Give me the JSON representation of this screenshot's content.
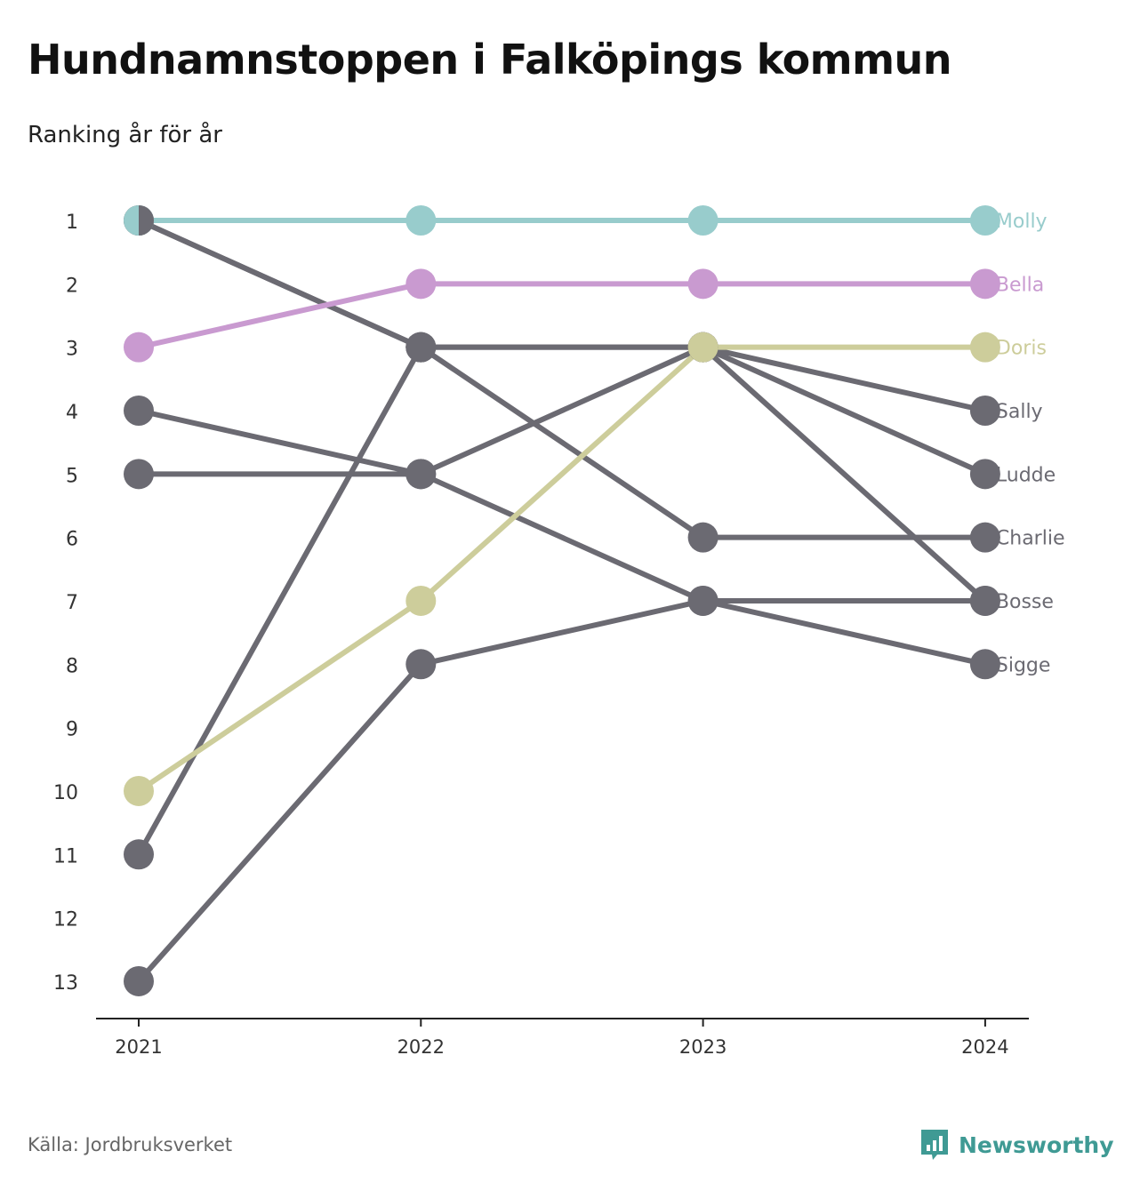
{
  "title": "Hundnamnstoppen i Falköpings kommun",
  "subtitle": "Ranking år för år",
  "source": "Källa: Jordbruksverket",
  "brand": {
    "name": "Newsworthy",
    "icon": "bar-chart-speech-bubble-icon",
    "color": "#3f9a94"
  },
  "chart_data": {
    "type": "line",
    "x": [
      "2021",
      "2022",
      "2023",
      "2024"
    ],
    "y_ticks": [
      "1",
      "2",
      "3",
      "4",
      "5",
      "6",
      "7",
      "8",
      "9",
      "10",
      "11",
      "12",
      "13"
    ],
    "ylim": [
      1,
      13
    ],
    "y_inverted": true,
    "grid": false,
    "legend": "direct-labels-right",
    "default_color": "#6b6a72",
    "series": [
      {
        "name": "Ludde",
        "values": [
          1,
          3,
          3,
          5
        ],
        "color": "#6b6a72"
      },
      {
        "name": "Charlie",
        "values": [
          1,
          3,
          6,
          6
        ],
        "color": "#6b6a72"
      },
      {
        "name": "Sally",
        "values": [
          11,
          3,
          3,
          4
        ],
        "color": "#6b6a72"
      },
      {
        "name": "Bosse",
        "values": [
          5,
          5,
          3,
          7
        ],
        "color": "#6b6a72"
      },
      {
        "name": "Sigge",
        "values": [
          4,
          5,
          7,
          8
        ],
        "color": "#6b6a72"
      },
      {
        "name": "Bosse",
        "values": [
          13,
          8,
          7,
          7
        ],
        "color": "#6b6a72"
      },
      {
        "name": "Doris",
        "values": [
          10,
          7,
          3,
          3
        ],
        "color": "#cdcd9b"
      },
      {
        "name": "Bella",
        "values": [
          3,
          2,
          2,
          2
        ],
        "color": "#c99ad0"
      },
      {
        "name": "Molly",
        "values": [
          1,
          1,
          1,
          1
        ],
        "color": "#98cccc"
      }
    ],
    "end_labels": [
      {
        "name": "Molly",
        "rank": 1,
        "color": "#98cccc"
      },
      {
        "name": "Bella",
        "rank": 2,
        "color": "#c99ad0"
      },
      {
        "name": "Doris",
        "rank": 3,
        "color": "#cdcd9b"
      },
      {
        "name": "Sally",
        "rank": 4,
        "color": "#6b6a72"
      },
      {
        "name": "Ludde",
        "rank": 5,
        "color": "#6b6a72"
      },
      {
        "name": "Charlie",
        "rank": 6,
        "color": "#6b6a72"
      },
      {
        "name": "Bosse",
        "rank": 7,
        "color": "#6b6a72"
      },
      {
        "name": "Sigge",
        "rank": 8,
        "color": "#6b6a72"
      }
    ]
  }
}
